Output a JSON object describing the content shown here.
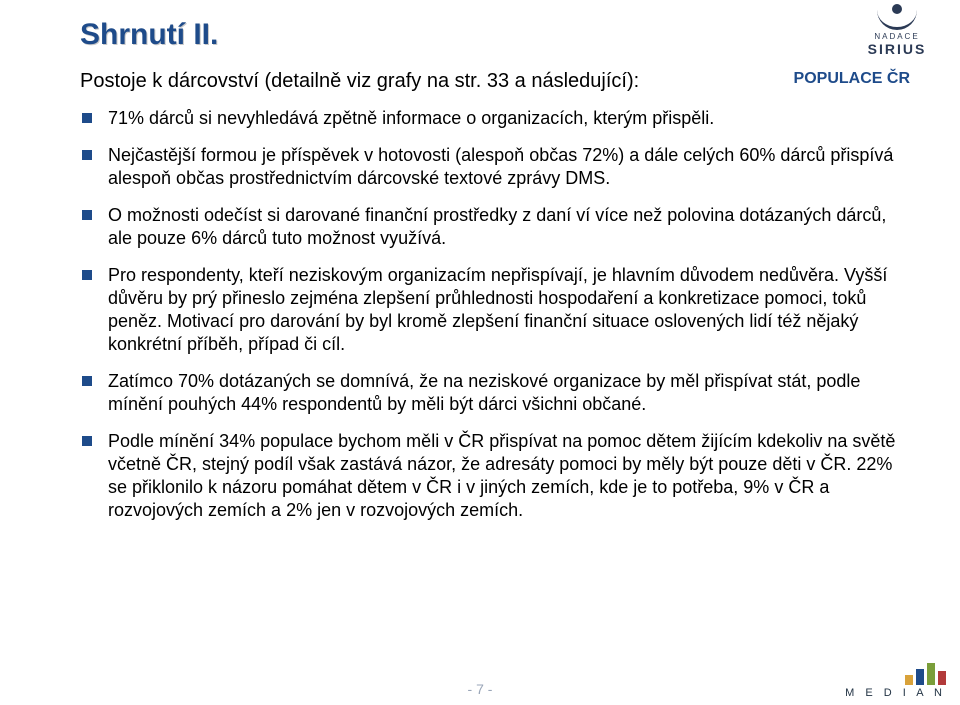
{
  "title": "Shrnutí II.",
  "subtitle": "Postoje k dárcovství (detailně viz grafy na str. 33 a následující):",
  "tag": "POPULACE ČR",
  "bullets": [
    "71% dárců si nevyhledává zpětně informace o organizacích, kterým přispěli.",
    "Nejčastější formou je příspěvek v hotovosti (alespoň občas 72%) a dále celých 60% dárců přispívá alespoň občas prostřednictvím dárcovské textové zprávy DMS.",
    "O možnosti odečíst si darované finanční prostředky z daní ví více než polovina dotázaných dárců, ale pouze 6% dárců tuto možnost využívá.",
    "Pro respondenty, kteří neziskovým organizacím nepřispívají, je hlavním důvodem nedůvěra. Vyšší důvěru by prý přineslo zejména zlepšení průhlednosti hospodaření a konkretizace pomoci, toků peněz. Motivací pro darování by byl kromě zlepšení finanční situace oslovených lidí též nějaký konkrétní příběh, případ či cíl.",
    "Zatímco 70% dotázaných se domnívá, že na neziskové organizace by měl přispívat stát, podle mínění pouhých 44% respondentů by měli být dárci všichni občané.",
    "Podle mínění 34% populace bychom měli v ČR přispívat na pomoc dětem žijícím kdekoliv na světě včetně ČR, stejný podíl však zastává názor, že adresáty pomoci by měly být pouze děti v ČR. 22% se přiklonilo k názoru pomáhat dětem v ČR i v jiných zemích, kde je to potřeba, 9% v ČR a rozvojových zemích a 2% jen v rozvojových zemích."
  ],
  "page_number": "- 7 -",
  "logos": {
    "sirius": {
      "line1": "NADACE",
      "line2": "SIRIUS",
      "color": "#2b3a55"
    },
    "median": {
      "label": "M E D I A N",
      "bars": [
        {
          "h": 10,
          "color": "#d9a23a"
        },
        {
          "h": 16,
          "color": "#1e4b8a"
        },
        {
          "h": 22,
          "color": "#7a9e3a"
        },
        {
          "h": 14,
          "color": "#b23a3a"
        }
      ]
    }
  },
  "colors": {
    "accent": "#1e4b8a",
    "text": "#000000",
    "page_number": "#9aa6b8",
    "background": "#ffffff"
  }
}
